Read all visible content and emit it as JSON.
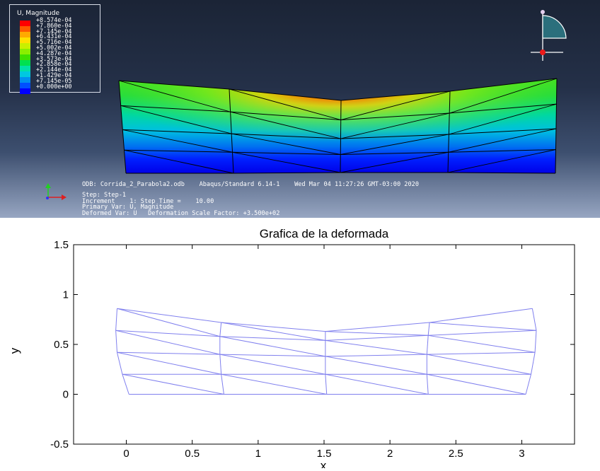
{
  "viewer": {
    "legend": {
      "title": "U, Magnitude",
      "values": [
        "+8.574e-04",
        "+7.860e-04",
        "+7.145e-04",
        "+6.431e-04",
        "+5.716e-04",
        "+5.002e-04",
        "+4.287e-04",
        "+3.573e-04",
        "+2.858e-04",
        "+2.144e-04",
        "+1.429e-04",
        "+7.145e-05",
        "+0.000e+00"
      ],
      "colors": [
        "#ff0000",
        "#ff5a00",
        "#ffaa00",
        "#ffe000",
        "#c8f000",
        "#8aee00",
        "#3ee000",
        "#00e050",
        "#00e0a8",
        "#00c8e0",
        "#0090f0",
        "#0050ff",
        "#0000ff"
      ]
    },
    "triad": {
      "y": "Y",
      "x": "X",
      "z": "Z"
    },
    "orientation": {
      "y": "Y",
      "x": "X"
    },
    "info": {
      "odb": "ODB: Corrida_2_Parabola2.odb    Abaqus/Standard 6.14-1    Wed Mar 04 11:27:26 GMT-03:00 2020",
      "step": "Step: Step-1",
      "increment": "Increment    1: Step Time =    10.00",
      "primary": "Primary Var: U, Magnitude",
      "deformed": "Deformed Var: U   Deformation Scale Factor: +3.500e+02"
    }
  },
  "plot": {
    "title": "Grafica de la deformada",
    "xlabel": "x",
    "ylabel": "y",
    "xticks": [
      "0",
      "0.5",
      "1",
      "1.5",
      "2",
      "2.5",
      "3"
    ],
    "yticks": [
      "1.5",
      "1",
      "0.5",
      "0",
      "-0.5"
    ],
    "line_color": "#8080ee"
  },
  "chart_data": {
    "type": "line",
    "title": "Grafica de la deformada",
    "xlabel": "x",
    "ylabel": "y",
    "xlim": [
      -0.4,
      3.4
    ],
    "ylim": [
      -0.5,
      1.5
    ],
    "grid": false,
    "nodes_x": [
      [
        0.02,
        0.74,
        1.52,
        2.29,
        3.03
      ],
      [
        -0.03,
        0.72,
        1.51,
        2.28,
        3.07
      ],
      [
        -0.07,
        0.71,
        1.51,
        2.28,
        3.1
      ],
      [
        -0.08,
        0.71,
        1.51,
        2.29,
        3.11
      ],
      [
        -0.07,
        0.72,
        1.51,
        2.3,
        3.08
      ]
    ],
    "nodes_y": [
      [
        0.0,
        0.0,
        0.0,
        0.0,
        0.0
      ],
      [
        0.2,
        0.2,
        0.2,
        0.2,
        0.2
      ],
      [
        0.42,
        0.4,
        0.38,
        0.4,
        0.42
      ],
      [
        0.64,
        0.58,
        0.54,
        0.59,
        0.64
      ],
      [
        0.86,
        0.72,
        0.63,
        0.72,
        0.86
      ]
    ]
  }
}
